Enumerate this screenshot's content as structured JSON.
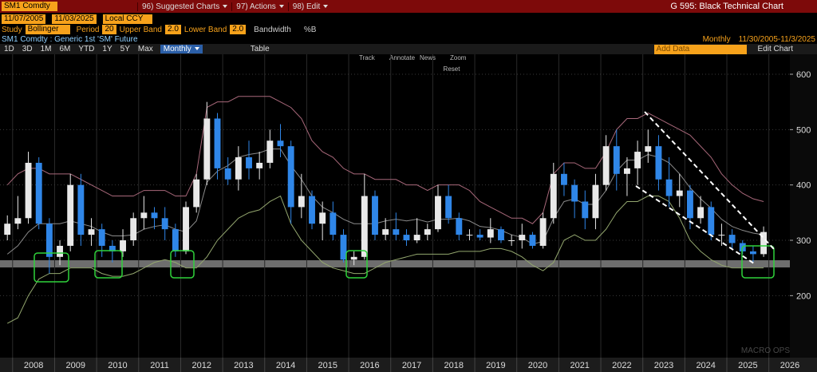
{
  "toolbar": {
    "security": "SM1 Comdty",
    "menus": [
      "96) Suggested Charts",
      "97) Actions",
      "98) Edit"
    ],
    "chart_name": "G 595: Black Technical Chart"
  },
  "range": {
    "start": "11/07/2005",
    "end": "11/03/2025",
    "currency": "Local CCY"
  },
  "study": {
    "label": "Study",
    "name": "Bollinger",
    "period_label": "Period",
    "period": "20",
    "upper_label": "Upper Band",
    "upper": "2.0",
    "lower_label": "Lower Band",
    "lower": "2.0",
    "bandwidth": "Bandwidth",
    "percent_b": "%B"
  },
  "header": {
    "description": "SM1 Comdty : Generic 1st 'SM' Future",
    "frequency": "Monthly",
    "period_range": "11/30/2005-11/3/2025"
  },
  "periods": [
    "1D",
    "3D",
    "1M",
    "6M",
    "YTD",
    "1Y",
    "5Y",
    "Max"
  ],
  "frequency_button": "Monthly",
  "table_button": "Table",
  "add_data": "Add Data",
  "edit_chart": "Edit Chart",
  "tools": [
    "Track",
    "Annotate",
    "News",
    "Zoom"
  ],
  "reset": "Reset",
  "watermark": "MACRO OPS",
  "chart_data": {
    "type": "candlestick",
    "up_color": "#e8e8e8",
    "down_color": "#2f86e8",
    "grid": true,
    "x": [
      2007.875,
      2008.125,
      2008.375,
      2008.625,
      2008.875,
      2009.125,
      2009.375,
      2009.625,
      2009.875,
      2010.125,
      2010.375,
      2010.625,
      2010.875,
      2011.125,
      2011.375,
      2011.625,
      2011.875,
      2012.125,
      2012.375,
      2012.625,
      2012.875,
      2013.125,
      2013.375,
      2013.625,
      2013.875,
      2014.125,
      2014.375,
      2014.625,
      2014.875,
      2015.125,
      2015.375,
      2015.625,
      2015.875,
      2016.125,
      2016.375,
      2016.625,
      2016.875,
      2017.125,
      2017.375,
      2017.625,
      2017.875,
      2018.125,
      2018.375,
      2018.625,
      2018.875,
      2019.125,
      2019.375,
      2019.625,
      2019.875,
      2020.125,
      2020.375,
      2020.625,
      2020.875,
      2021.125,
      2021.375,
      2021.625,
      2021.875,
      2022.125,
      2022.375,
      2022.625,
      2022.875,
      2023.125,
      2023.375,
      2023.625,
      2023.875,
      2024.125,
      2024.375,
      2024.625,
      2024.875,
      2025.125,
      2025.375,
      2025.625,
      2025.875
    ],
    "open": [
      310,
      330,
      340,
      440,
      330,
      270,
      290,
      400,
      310,
      320,
      290,
      280,
      300,
      340,
      350,
      340,
      320,
      280,
      360,
      410,
      520,
      430,
      410,
      450,
      430,
      440,
      480,
      470,
      360,
      380,
      330,
      350,
      310,
      265,
      270,
      380,
      310,
      320,
      310,
      300,
      310,
      320,
      380,
      340,
      310,
      310,
      305,
      320,
      300,
      300,
      310,
      290,
      340,
      420,
      400,
      370,
      340,
      400,
      470,
      420,
      430,
      460,
      470,
      410,
      380,
      390,
      340,
      360,
      310,
      310,
      295,
      280,
      275
    ],
    "high": [
      345,
      380,
      460,
      450,
      340,
      300,
      420,
      420,
      340,
      330,
      300,
      320,
      350,
      380,
      360,
      360,
      330,
      370,
      420,
      550,
      530,
      450,
      470,
      480,
      460,
      500,
      510,
      480,
      420,
      390,
      370,
      370,
      320,
      280,
      420,
      390,
      340,
      350,
      320,
      340,
      330,
      400,
      400,
      350,
      320,
      320,
      340,
      325,
      310,
      330,
      315,
      350,
      440,
      440,
      410,
      390,
      420,
      490,
      500,
      450,
      480,
      500,
      490,
      450,
      420,
      400,
      380,
      370,
      330,
      320,
      300,
      290,
      325
    ],
    "low": [
      300,
      320,
      330,
      320,
      240,
      255,
      280,
      290,
      290,
      270,
      260,
      270,
      290,
      320,
      320,
      300,
      270,
      275,
      350,
      400,
      410,
      400,
      390,
      410,
      410,
      430,
      450,
      330,
      340,
      320,
      300,
      300,
      260,
      255,
      265,
      300,
      300,
      300,
      290,
      295,
      300,
      315,
      330,
      300,
      300,
      300,
      295,
      295,
      290,
      285,
      285,
      285,
      330,
      380,
      340,
      320,
      320,
      390,
      390,
      380,
      400,
      440,
      390,
      360,
      360,
      320,
      330,
      300,
      290,
      285,
      275,
      260,
      270
    ],
    "close": [
      330,
      340,
      440,
      330,
      270,
      290,
      400,
      310,
      320,
      290,
      280,
      300,
      340,
      350,
      340,
      320,
      280,
      360,
      410,
      520,
      430,
      410,
      450,
      430,
      440,
      480,
      470,
      360,
      380,
      330,
      350,
      310,
      265,
      270,
      380,
      310,
      320,
      310,
      300,
      310,
      320,
      380,
      340,
      310,
      310,
      305,
      320,
      300,
      300,
      310,
      290,
      340,
      420,
      400,
      370,
      340,
      400,
      470,
      420,
      430,
      460,
      470,
      410,
      380,
      390,
      340,
      360,
      310,
      310,
      295,
      280,
      275,
      315
    ],
    "bands": {
      "upper": {
        "color": "#a8687a",
        "values": [
          400,
          420,
          430,
          430,
          420,
          420,
          420,
          410,
          400,
          390,
          380,
          380,
          380,
          390,
          390,
          390,
          380,
          380,
          420,
          540,
          550,
          550,
          560,
          560,
          560,
          560,
          550,
          540,
          520,
          480,
          460,
          450,
          430,
          420,
          420,
          410,
          410,
          410,
          400,
          400,
          390,
          400,
          400,
          400,
          390,
          370,
          360,
          350,
          340,
          340,
          330,
          350,
          420,
          440,
          440,
          430,
          430,
          460,
          500,
          520,
          520,
          530,
          520,
          510,
          500,
          490,
          470,
          450,
          420,
          400,
          385,
          375,
          370
        ]
      },
      "middle": {
        "color": "#8a8a8a",
        "values": [
          275,
          290,
          315,
          330,
          330,
          330,
          335,
          330,
          325,
          315,
          308,
          308,
          310,
          320,
          325,
          328,
          320,
          315,
          335,
          405,
          425,
          435,
          450,
          455,
          458,
          465,
          465,
          435,
          410,
          380,
          360,
          350,
          338,
          330,
          330,
          330,
          335,
          338,
          335,
          338,
          333,
          338,
          338,
          340,
          335,
          325,
          323,
          318,
          310,
          305,
          293,
          298,
          340,
          370,
          375,
          365,
          365,
          390,
          425,
          445,
          445,
          455,
          450,
          440,
          420,
          395,
          375,
          358,
          338,
          325,
          318,
          313,
          310
        ]
      },
      "lower": {
        "color": "#93a66e",
        "values": [
          150,
          160,
          200,
          230,
          240,
          240,
          250,
          250,
          250,
          240,
          235,
          235,
          240,
          250,
          260,
          265,
          260,
          250,
          250,
          270,
          300,
          320,
          340,
          350,
          355,
          370,
          380,
          330,
          300,
          280,
          260,
          250,
          245,
          240,
          240,
          250,
          260,
          265,
          270,
          275,
          275,
          275,
          275,
          280,
          280,
          280,
          285,
          285,
          280,
          270,
          255,
          245,
          260,
          300,
          310,
          300,
          300,
          320,
          350,
          370,
          370,
          380,
          380,
          370,
          340,
          300,
          280,
          265,
          255,
          250,
          250,
          250,
          250
        ]
      }
    },
    "xlim": [
      2007.7,
      2026.5
    ],
    "ylim": [
      88,
      613
    ],
    "xticks": [
      {
        "value": 2008,
        "label": "2008"
      },
      {
        "value": 2009,
        "label": "2009"
      },
      {
        "value": 2010,
        "label": "2010"
      },
      {
        "value": 2011,
        "label": "2011"
      },
      {
        "value": 2012,
        "label": "2012"
      },
      {
        "value": 2013,
        "label": "2013"
      },
      {
        "value": 2014,
        "label": "2014"
      },
      {
        "value": 2015,
        "label": "2015"
      },
      {
        "value": 2016,
        "label": "2016"
      },
      {
        "value": 2017,
        "label": "2017"
      },
      {
        "value": 2018,
        "label": "2018"
      },
      {
        "value": 2019,
        "label": "2019"
      },
      {
        "value": 2020,
        "label": "2020"
      },
      {
        "value": 2021,
        "label": "2021"
      },
      {
        "value": 2022,
        "label": "2022"
      },
      {
        "value": 2023,
        "label": "2023"
      },
      {
        "value": 2024,
        "label": "2024"
      },
      {
        "value": 2025,
        "label": "2025"
      },
      {
        "value": 2026,
        "label": "2026"
      }
    ],
    "yticks": [
      200,
      300,
      400,
      500,
      600
    ]
  }
}
